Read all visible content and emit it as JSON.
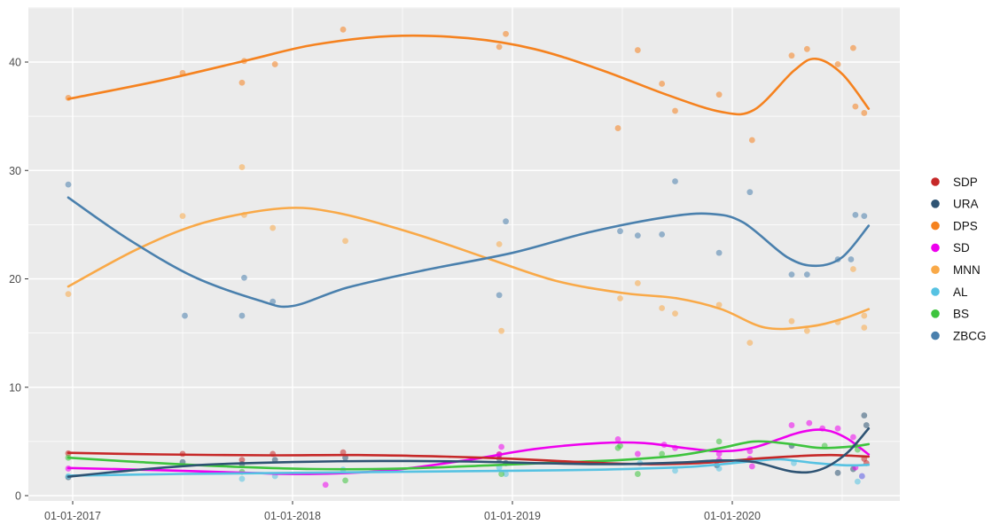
{
  "chart_data": {
    "type": "scatter",
    "subtype": "scatter-points-with-loess-smooth-lines",
    "title": "",
    "xlabel": "",
    "ylabel": "",
    "x_axis": {
      "tick_labels": [
        "01-01-2017",
        "01-01-2018",
        "01-01-2019",
        "01-01-2020"
      ],
      "tick_years": [
        2017,
        2018,
        2019,
        2020
      ],
      "minor_years": [
        2017.5,
        2018.5,
        2019.5,
        2020.5
      ],
      "range_years": [
        2016.8,
        2020.76
      ]
    },
    "y_axis": {
      "tick_labels": [
        "0",
        "10",
        "20",
        "30",
        "40"
      ],
      "ticks": [
        0,
        10,
        20,
        30,
        40
      ],
      "minor": [
        5,
        15,
        25,
        35,
        45
      ],
      "range": [
        -0.5,
        45.1
      ]
    },
    "grid": "on",
    "legend_position": "right",
    "panel_background": "#EBEBEB",
    "grid_color": "#FFFFFF",
    "axis_text_color": "#4D4D4D",
    "point_opacity": 0.55,
    "series": [
      {
        "name": "SDP",
        "color": "#C62828",
        "points": [
          [
            2016.98,
            3.9
          ],
          [
            2017.5,
            3.85
          ],
          [
            2017.77,
            3.3
          ],
          [
            2017.91,
            3.85
          ],
          [
            2018.23,
            4.0
          ],
          [
            2018.94,
            3.8
          ],
          [
            2020.6,
            3.4
          ],
          [
            2020.61,
            3.0
          ]
        ],
        "smooth": [
          [
            2016.98,
            3.95
          ],
          [
            2017.4,
            3.8
          ],
          [
            2017.9,
            3.72
          ],
          [
            2018.3,
            3.75
          ],
          [
            2018.7,
            3.6
          ],
          [
            2019.0,
            3.4
          ],
          [
            2019.35,
            3.05
          ],
          [
            2019.6,
            2.9
          ],
          [
            2019.85,
            3.0
          ],
          [
            2020.1,
            3.4
          ],
          [
            2020.3,
            3.65
          ],
          [
            2020.45,
            3.75
          ],
          [
            2020.62,
            3.6
          ]
        ]
      },
      {
        "name": "URA",
        "color": "#2E5373",
        "points": [
          [
            2016.98,
            1.7
          ],
          [
            2017.5,
            3.1
          ],
          [
            2017.77,
            2.9
          ],
          [
            2017.92,
            3.3
          ],
          [
            2018.24,
            3.5
          ],
          [
            2018.94,
            3.4
          ],
          [
            2018.97,
            3.0
          ],
          [
            2019.93,
            2.8
          ],
          [
            2020.27,
            4.6
          ],
          [
            2020.48,
            2.1
          ],
          [
            2020.55,
            2.45
          ],
          [
            2020.6,
            7.4
          ],
          [
            2020.61,
            6.5
          ]
        ],
        "smooth": [
          [
            2016.98,
            1.75
          ],
          [
            2017.25,
            2.3
          ],
          [
            2017.6,
            2.85
          ],
          [
            2018.0,
            3.1
          ],
          [
            2018.4,
            3.2
          ],
          [
            2018.8,
            3.15
          ],
          [
            2019.1,
            3.0
          ],
          [
            2019.45,
            2.9
          ],
          [
            2019.75,
            3.05
          ],
          [
            2019.95,
            3.25
          ],
          [
            2020.1,
            3.1
          ],
          [
            2020.28,
            2.2
          ],
          [
            2020.4,
            2.4
          ],
          [
            2020.52,
            3.9
          ],
          [
            2020.62,
            6.2
          ]
        ]
      },
      {
        "name": "DPS",
        "color": "#F5821F",
        "points": [
          [
            2016.98,
            36.7
          ],
          [
            2017.5,
            39.0
          ],
          [
            2017.77,
            38.1
          ],
          [
            2017.78,
            40.1
          ],
          [
            2017.92,
            39.8
          ],
          [
            2018.23,
            43.0
          ],
          [
            2018.94,
            41.4
          ],
          [
            2018.97,
            42.6
          ],
          [
            2019.48,
            33.9
          ],
          [
            2019.57,
            41.1
          ],
          [
            2019.68,
            38.0
          ],
          [
            2019.74,
            35.5
          ],
          [
            2019.94,
            37.0
          ],
          [
            2020.09,
            32.8
          ],
          [
            2020.27,
            40.6
          ],
          [
            2020.34,
            41.2
          ],
          [
            2020.48,
            39.8
          ],
          [
            2020.55,
            41.3
          ],
          [
            2020.56,
            35.9
          ],
          [
            2020.6,
            35.3
          ]
        ],
        "smooth": [
          [
            2016.98,
            36.6
          ],
          [
            2017.4,
            38.3
          ],
          [
            2017.8,
            40.2
          ],
          [
            2018.1,
            41.6
          ],
          [
            2018.45,
            42.4
          ],
          [
            2018.8,
            42.2
          ],
          [
            2019.1,
            41.2
          ],
          [
            2019.4,
            39.3
          ],
          [
            2019.7,
            37.0
          ],
          [
            2019.95,
            35.4
          ],
          [
            2020.1,
            35.6
          ],
          [
            2020.28,
            39.2
          ],
          [
            2020.38,
            40.3
          ],
          [
            2020.5,
            38.9
          ],
          [
            2020.62,
            35.7
          ]
        ]
      },
      {
        "name": "SD",
        "color": "#EE00EE",
        "points": [
          [
            2016.98,
            2.5
          ],
          [
            2018.15,
            1.0
          ],
          [
            2018.94,
            3.8
          ],
          [
            2018.95,
            4.5
          ],
          [
            2019.48,
            5.2
          ],
          [
            2019.57,
            3.85
          ],
          [
            2019.69,
            4.7
          ],
          [
            2019.74,
            4.4
          ],
          [
            2019.94,
            3.85
          ],
          [
            2019.94,
            3.3
          ],
          [
            2020.08,
            4.1
          ],
          [
            2020.08,
            3.4
          ],
          [
            2020.09,
            2.7
          ],
          [
            2020.27,
            6.5
          ],
          [
            2020.35,
            6.7
          ],
          [
            2020.41,
            6.2
          ],
          [
            2020.48,
            6.2
          ],
          [
            2020.55,
            5.4
          ],
          [
            2020.56,
            2.6
          ],
          [
            2020.59,
            1.8
          ]
        ],
        "smooth": [
          [
            2016.98,
            2.55
          ],
          [
            2017.4,
            2.35
          ],
          [
            2017.8,
            2.1
          ],
          [
            2018.1,
            2.0
          ],
          [
            2018.45,
            2.35
          ],
          [
            2018.8,
            3.3
          ],
          [
            2019.1,
            4.3
          ],
          [
            2019.4,
            4.85
          ],
          [
            2019.6,
            4.85
          ],
          [
            2019.8,
            4.35
          ],
          [
            2019.95,
            4.1
          ],
          [
            2020.1,
            4.45
          ],
          [
            2020.3,
            5.8
          ],
          [
            2020.42,
            6.05
          ],
          [
            2020.52,
            5.3
          ],
          [
            2020.62,
            3.8
          ]
        ]
      },
      {
        "name": "MNN",
        "color": "#F9A948",
        "points": [
          [
            2016.98,
            18.6
          ],
          [
            2017.5,
            25.8
          ],
          [
            2017.77,
            30.3
          ],
          [
            2017.78,
            25.9
          ],
          [
            2017.91,
            24.7
          ],
          [
            2018.24,
            23.5
          ],
          [
            2018.94,
            23.2
          ],
          [
            2018.95,
            15.2
          ],
          [
            2019.49,
            18.2
          ],
          [
            2019.57,
            19.6
          ],
          [
            2019.68,
            17.3
          ],
          [
            2019.74,
            16.8
          ],
          [
            2019.94,
            17.6
          ],
          [
            2020.08,
            14.1
          ],
          [
            2020.27,
            16.1
          ],
          [
            2020.34,
            15.2
          ],
          [
            2020.48,
            16.0
          ],
          [
            2020.55,
            20.9
          ],
          [
            2020.6,
            16.6
          ],
          [
            2020.6,
            15.5
          ]
        ],
        "smooth": [
          [
            2016.98,
            19.3
          ],
          [
            2017.3,
            22.8
          ],
          [
            2017.6,
            25.2
          ],
          [
            2017.95,
            26.5
          ],
          [
            2018.2,
            26.1
          ],
          [
            2018.55,
            24.2
          ],
          [
            2018.9,
            21.8
          ],
          [
            2019.2,
            19.8
          ],
          [
            2019.5,
            18.7
          ],
          [
            2019.75,
            18.2
          ],
          [
            2019.95,
            17.2
          ],
          [
            2020.15,
            15.5
          ],
          [
            2020.35,
            15.6
          ],
          [
            2020.5,
            16.3
          ],
          [
            2020.62,
            17.2
          ]
        ]
      },
      {
        "name": "AL",
        "color": "#56C2E2",
        "points": [
          [
            2016.98,
            1.8
          ],
          [
            2017.77,
            1.55
          ],
          [
            2017.92,
            1.8
          ],
          [
            2018.23,
            2.4
          ],
          [
            2018.94,
            2.6
          ],
          [
            2018.97,
            2.0
          ],
          [
            2019.58,
            3.0
          ],
          [
            2019.74,
            2.3
          ],
          [
            2019.94,
            2.5
          ],
          [
            2020.28,
            3.0
          ],
          [
            2020.57,
            1.3
          ],
          [
            2020.59,
            1.8
          ]
        ],
        "smooth": [
          [
            2016.98,
            1.85
          ],
          [
            2017.5,
            2.0
          ],
          [
            2018.0,
            2.1
          ],
          [
            2018.5,
            2.2
          ],
          [
            2019.0,
            2.3
          ],
          [
            2019.4,
            2.4
          ],
          [
            2019.8,
            2.65
          ],
          [
            2020.1,
            3.2
          ],
          [
            2020.22,
            3.35
          ],
          [
            2020.38,
            3.0
          ],
          [
            2020.52,
            2.8
          ],
          [
            2020.62,
            2.85
          ]
        ]
      },
      {
        "name": "BS",
        "color": "#3EC43E",
        "points": [
          [
            2016.98,
            3.5
          ],
          [
            2017.77,
            2.2
          ],
          [
            2018.24,
            1.4
          ],
          [
            2018.95,
            2.0
          ],
          [
            2019.48,
            4.4
          ],
          [
            2019.49,
            4.6
          ],
          [
            2019.57,
            2.0
          ],
          [
            2019.68,
            3.85
          ],
          [
            2019.94,
            5.0
          ],
          [
            2020.42,
            4.6
          ],
          [
            2020.56,
            4.65
          ],
          [
            2020.57,
            4.25
          ]
        ],
        "smooth": [
          [
            2016.98,
            3.5
          ],
          [
            2017.3,
            3.1
          ],
          [
            2017.7,
            2.7
          ],
          [
            2018.1,
            2.45
          ],
          [
            2018.5,
            2.5
          ],
          [
            2018.9,
            2.8
          ],
          [
            2019.2,
            3.05
          ],
          [
            2019.5,
            3.3
          ],
          [
            2019.75,
            3.7
          ],
          [
            2019.95,
            4.4
          ],
          [
            2020.1,
            5.0
          ],
          [
            2020.25,
            4.8
          ],
          [
            2020.4,
            4.4
          ],
          [
            2020.55,
            4.55
          ],
          [
            2020.62,
            4.75
          ]
        ]
      },
      {
        "name": "ZBCG",
        "color": "#4A80AD",
        "points": [
          [
            2016.98,
            28.7
          ],
          [
            2017.51,
            16.6
          ],
          [
            2017.77,
            16.6
          ],
          [
            2017.78,
            20.1
          ],
          [
            2017.91,
            17.9
          ],
          [
            2018.94,
            18.5
          ],
          [
            2018.97,
            25.3
          ],
          [
            2019.49,
            24.4
          ],
          [
            2019.57,
            24.0
          ],
          [
            2019.68,
            24.1
          ],
          [
            2019.74,
            29.0
          ],
          [
            2019.94,
            22.4
          ],
          [
            2020.08,
            28.0
          ],
          [
            2020.27,
            20.4
          ],
          [
            2020.34,
            20.4
          ],
          [
            2020.48,
            21.8
          ],
          [
            2020.54,
            21.8
          ],
          [
            2020.56,
            25.9
          ],
          [
            2020.6,
            25.8
          ]
        ],
        "smooth": [
          [
            2016.98,
            27.5
          ],
          [
            2017.25,
            23.7
          ],
          [
            2017.55,
            20.2
          ],
          [
            2017.85,
            18.0
          ],
          [
            2018.0,
            17.5
          ],
          [
            2018.25,
            19.2
          ],
          [
            2018.6,
            20.8
          ],
          [
            2019.0,
            22.4
          ],
          [
            2019.35,
            24.3
          ],
          [
            2019.7,
            25.7
          ],
          [
            2019.9,
            26.0
          ],
          [
            2020.05,
            25.2
          ],
          [
            2020.25,
            22.0
          ],
          [
            2020.38,
            21.2
          ],
          [
            2020.5,
            22.0
          ],
          [
            2020.62,
            24.9
          ]
        ]
      }
    ]
  },
  "legend": {
    "items": [
      {
        "label": "SDP",
        "color": "#C62828"
      },
      {
        "label": "URA",
        "color": "#2E5373"
      },
      {
        "label": "DPS",
        "color": "#F5821F"
      },
      {
        "label": "SD",
        "color": "#EE00EE"
      },
      {
        "label": "MNN",
        "color": "#F9A948"
      },
      {
        "label": "AL",
        "color": "#56C2E2"
      },
      {
        "label": "BS",
        "color": "#3EC43E"
      },
      {
        "label": "ZBCG",
        "color": "#4A80AD"
      }
    ]
  }
}
